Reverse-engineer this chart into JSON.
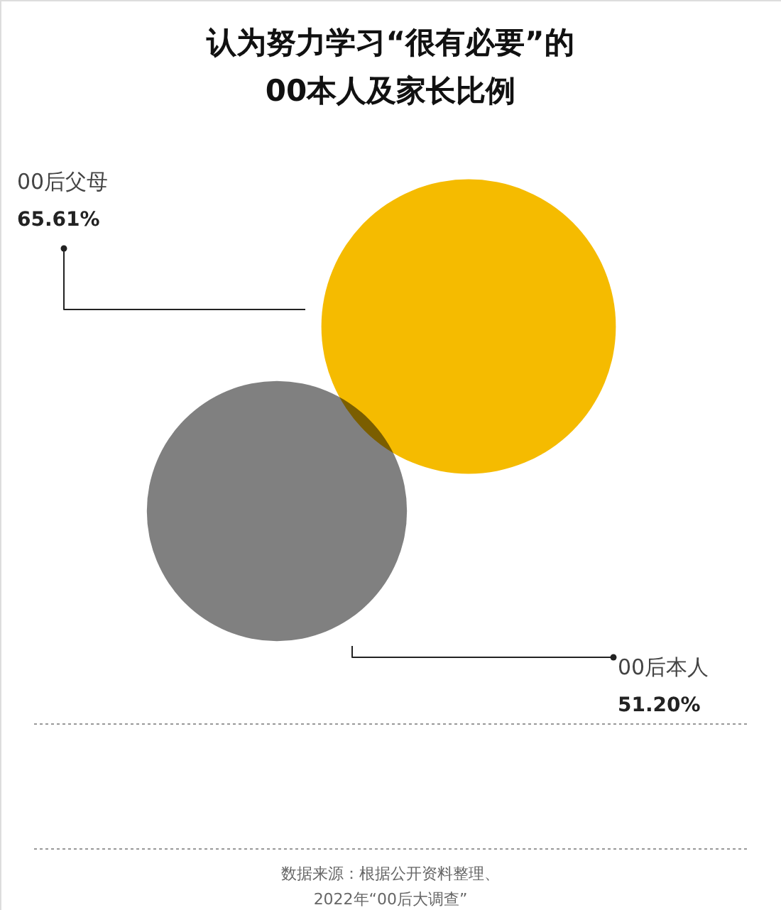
{
  "chart_data": {
    "type": "other",
    "title": "认为努力学习“很有必要”的\n00本人及家长比例",
    "categories": [
      "00后父母",
      "00后本人"
    ],
    "values": [
      65.61,
      51.2
    ],
    "value_labels": [
      "65.61%",
      "51.20%"
    ],
    "colors": [
      "#f5bb00",
      "#808080"
    ],
    "annotations": [
      "数据来源：根据公开资料整理、\n2022年“00后大调查”"
    ]
  }
}
